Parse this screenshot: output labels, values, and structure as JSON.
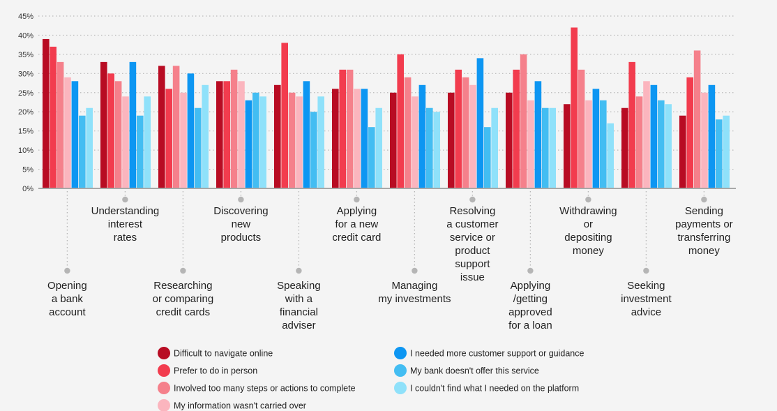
{
  "chart_data": {
    "type": "bar",
    "title": "",
    "xlabel": "",
    "ylabel": "",
    "ylim": [
      0,
      45
    ],
    "yticks": [
      "0%",
      "5%",
      "10%",
      "15%",
      "20%",
      "25%",
      "30%",
      "35%",
      "40%",
      "45%"
    ],
    "grid": true,
    "legend_position": "bottom",
    "categories": [
      "Opening a bank account",
      "Understanding interest rates",
      "Researching or comparing credit cards",
      "Discovering new products",
      "Speaking with a financial adviser",
      "Applying for a new credit card",
      "Managing my investments",
      "Resolving a customer service or product support issue",
      "Applying /getting approved for a loan",
      "Withdrawing or depositing money",
      "Seeking investment advice",
      "Sending payments or transferring money"
    ],
    "category_lines": [
      [
        "Opening",
        "a bank",
        "account"
      ],
      [
        "Understanding",
        "interest",
        "rates"
      ],
      [
        "Researching",
        "or comparing",
        "credit cards"
      ],
      [
        "Discovering",
        "new",
        "products"
      ],
      [
        "Speaking",
        "with a",
        "financial",
        "adviser"
      ],
      [
        "Applying",
        "for a new",
        "credit card"
      ],
      [
        "Managing",
        "my investments"
      ],
      [
        "Resolving",
        "a customer",
        "service or",
        "product",
        "support",
        "issue"
      ],
      [
        "Applying",
        "/getting",
        "approved",
        "for a loan"
      ],
      [
        "Withdrawing",
        "or",
        "depositing",
        "money"
      ],
      [
        "Seeking",
        "investment",
        "advice"
      ],
      [
        "Sending",
        "payments or",
        "transferring",
        "money"
      ]
    ],
    "series": [
      {
        "name": "Difficult to navigate online",
        "color": "#b80c23",
        "values": [
          39,
          33,
          32,
          28,
          27,
          26,
          25,
          25,
          25,
          22,
          21,
          19
        ]
      },
      {
        "name": "Prefer to do in person",
        "color": "#f23c4e",
        "values": [
          37,
          30,
          26,
          28,
          38,
          31,
          35,
          31,
          31,
          42,
          33,
          29
        ]
      },
      {
        "name": "Involved too many steps or actions to complete",
        "color": "#f5808b",
        "values": [
          33,
          28,
          32,
          31,
          25,
          31,
          29,
          29,
          35,
          31,
          24,
          36
        ]
      },
      {
        "name": "My information wasn't carried over",
        "color": "#fbb5be",
        "values": [
          29,
          24,
          25,
          28,
          24,
          26,
          24,
          27,
          23,
          23,
          28,
          25
        ]
      },
      {
        "name": "I needed more customer support or guidance",
        "color": "#0d96f2",
        "values": [
          28,
          33,
          30,
          23,
          28,
          26,
          27,
          34,
          28,
          26,
          27,
          27
        ]
      },
      {
        "name": "My bank doesn't offer this service",
        "color": "#43bdf2",
        "values": [
          19,
          19,
          21,
          25,
          20,
          16,
          21,
          16,
          21,
          23,
          23,
          18
        ]
      },
      {
        "name": "I couldn't find what I needed on the platform",
        "color": "#8fe1fa",
        "values": [
          21,
          24,
          27,
          24,
          24,
          21,
          20,
          21,
          21,
          17,
          22,
          19
        ]
      }
    ]
  }
}
